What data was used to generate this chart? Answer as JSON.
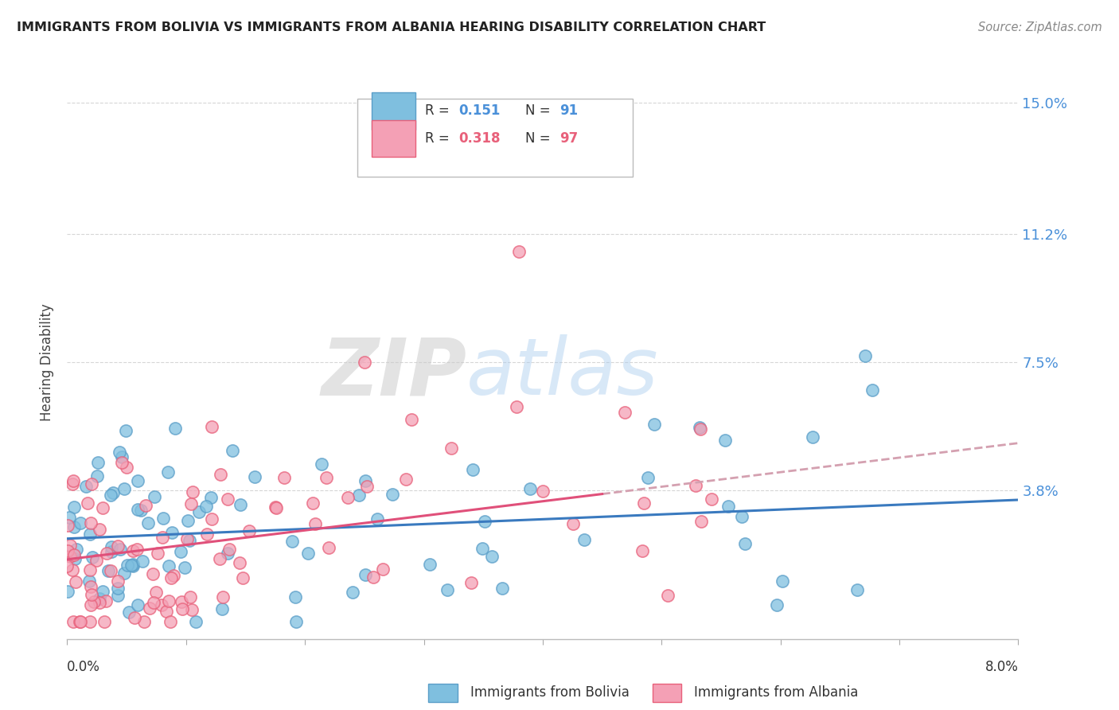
{
  "title": "IMMIGRANTS FROM BOLIVIA VS IMMIGRANTS FROM ALBANIA HEARING DISABILITY CORRELATION CHART",
  "source": "Source: ZipAtlas.com",
  "ylabel": "Hearing Disability",
  "y_ticks": [
    0.0,
    0.038,
    0.075,
    0.112,
    0.15
  ],
  "y_tick_labels": [
    "",
    "3.8%",
    "7.5%",
    "11.2%",
    "15.0%"
  ],
  "x_lim": [
    0.0,
    0.08
  ],
  "y_lim": [
    -0.005,
    0.155
  ],
  "bolivia_color": "#7fbfdf",
  "albania_color": "#f4a0b5",
  "bolivia_edge_color": "#5a9ec8",
  "albania_edge_color": "#e8607a",
  "bolivia_line_color": "#3a7abf",
  "albania_line_color": "#e0507a",
  "legend_r1": "0.151",
  "legend_n1": "91",
  "legend_r2": "0.318",
  "legend_n2": "97",
  "watermark_zip": "ZIP",
  "watermark_atlas": "atlas",
  "background_color": "#ffffff",
  "grid_color": "#cccccc",
  "title_color": "#222222",
  "source_color": "#888888",
  "tick_label_color": "#4a90d9",
  "bolivia_intercept": 0.024,
  "bolivia_slope": 0.14,
  "albania_intercept": 0.018,
  "albania_slope": 0.42,
  "dashed_line_color": "#d4a0b0"
}
